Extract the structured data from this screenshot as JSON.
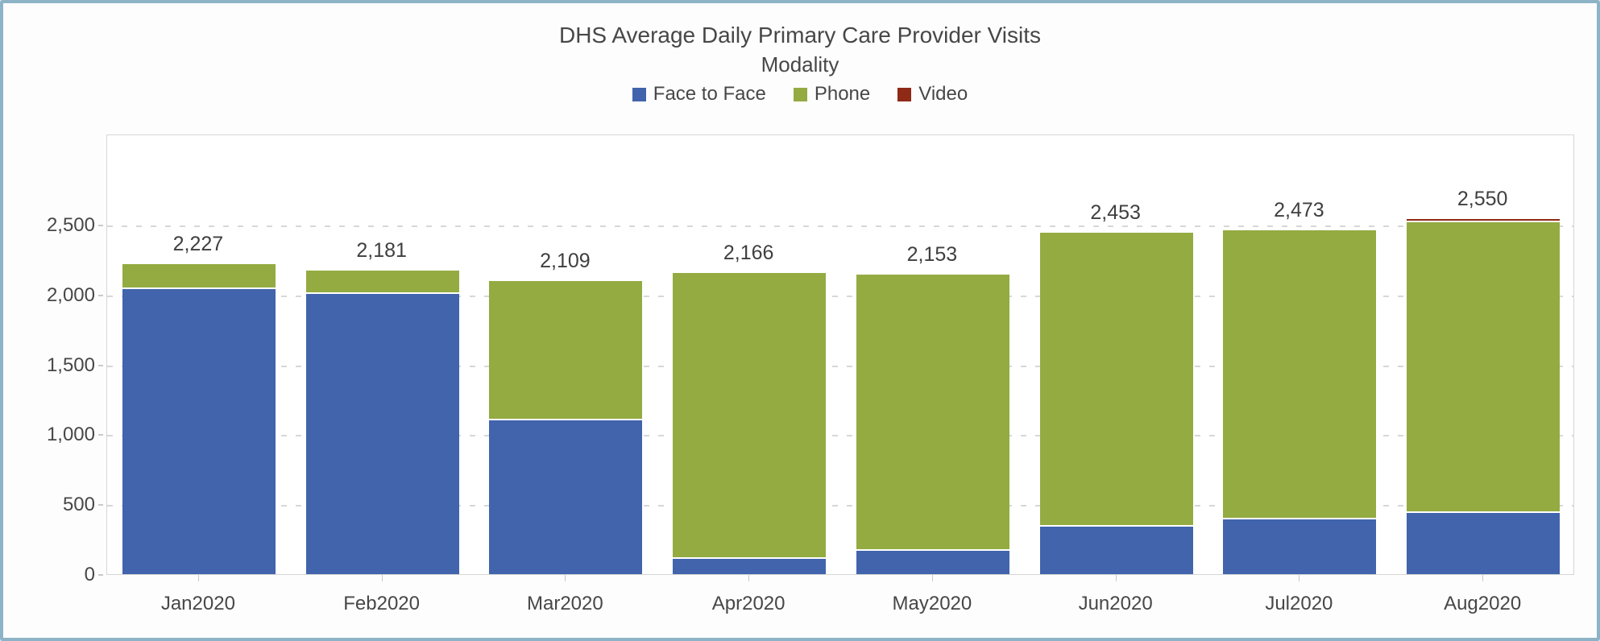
{
  "window": {
    "background": "#fdfdfd",
    "frame_border_color": "#8cb4c6"
  },
  "chart_data": {
    "type": "bar",
    "subtype": "stacked-vertical",
    "title": "DHS Average Daily Primary Care Provider Visits",
    "legend_title": "Modality",
    "legend_position": "top",
    "grid": "horizontal-dashed",
    "categories": [
      "Jan2020",
      "Feb2020",
      "Mar2020",
      "Apr2020",
      "May2020",
      "Jun2020",
      "Jul2020",
      "Aug2020"
    ],
    "series": [
      {
        "name": "Face to Face",
        "color": "#4164ac",
        "values": [
          2050,
          2015,
          1110,
          120,
          180,
          350,
          405,
          448
        ]
      },
      {
        "name": "Phone",
        "color": "#93ab41",
        "values": [
          177,
          166,
          999,
          2046,
          1973,
          2103,
          2068,
          2080
        ]
      },
      {
        "name": "Video",
        "color": "#8e2a16",
        "values": [
          0,
          0,
          0,
          0,
          0,
          0,
          0,
          22
        ]
      }
    ],
    "totals": [
      2227,
      2181,
      2109,
      2166,
      2153,
      2453,
      2473,
      2550
    ],
    "total_labels": [
      "2,227",
      "2,181",
      "2,109",
      "2,166",
      "2,153",
      "2,453",
      "2,473",
      "2,550"
    ],
    "xlabel": "",
    "ylabel": "",
    "yticks": [
      0,
      500,
      1000,
      1500,
      2000,
      2500
    ],
    "ytick_labels": [
      "0",
      "500",
      "1,000",
      "1,500",
      "2,000",
      "2,500"
    ],
    "ylim": [
      0,
      3150
    ],
    "colors": {
      "gridline": "#d7d7d7",
      "plot_border": "#d6d6d6",
      "text": "#474747",
      "segment_divider": "#ffffff"
    }
  }
}
